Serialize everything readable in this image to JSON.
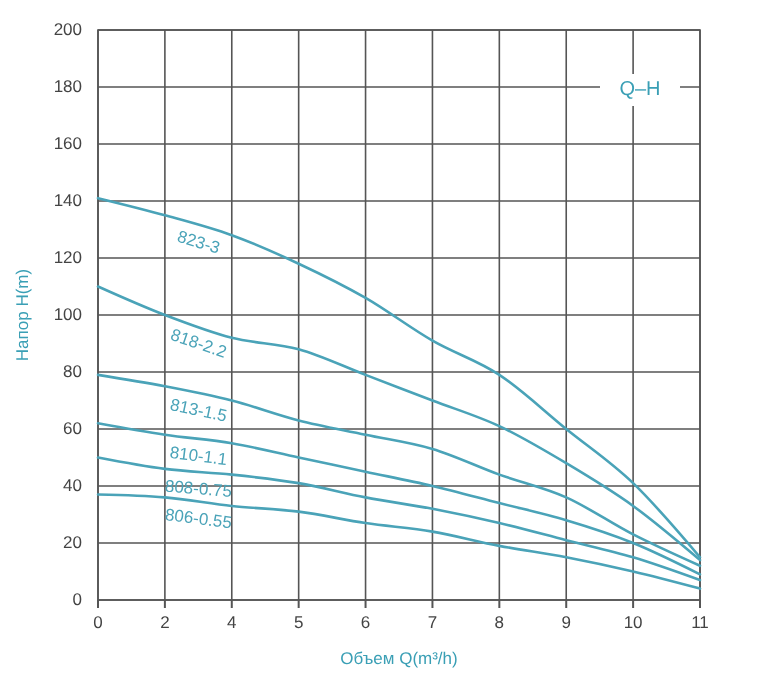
{
  "chart_data": {
    "type": "line",
    "title": "Q–H",
    "xlabel": "Объем Q(m³/h)",
    "ylabel": "Напор H(m)",
    "categories": [
      "0",
      "2",
      "4",
      "5",
      "6",
      "7",
      "8",
      "9",
      "10",
      "11"
    ],
    "ylim": [
      0,
      200
    ],
    "yticks": [
      0,
      20,
      40,
      60,
      80,
      100,
      120,
      140,
      160,
      180,
      200
    ],
    "grid": true,
    "marker": "none",
    "line_style": "solid",
    "series": [
      {
        "name": "823-3",
        "color": "#4aa3b8",
        "values": [
          141,
          135,
          128,
          118,
          106,
          91,
          79,
          60,
          41,
          15
        ]
      },
      {
        "name": "818-2.2",
        "color": "#4aa3b8",
        "values": [
          110,
          100,
          92,
          88,
          79,
          70,
          61,
          48,
          33,
          14
        ]
      },
      {
        "name": "813-1.5",
        "color": "#4aa3b8",
        "values": [
          79,
          75,
          70,
          63,
          58,
          53,
          44,
          36,
          23,
          12
        ]
      },
      {
        "name": "810-1.1",
        "color": "#4aa3b8",
        "values": [
          62,
          58,
          55,
          50,
          45,
          40,
          34,
          28,
          20,
          9
        ]
      },
      {
        "name": "808-0.75",
        "color": "#4aa3b8",
        "values": [
          50,
          46,
          44,
          41,
          36,
          32,
          27,
          21,
          15,
          7
        ]
      },
      {
        "name": "806-0.55",
        "color": "#4aa3b8",
        "values": [
          37,
          36,
          33,
          31,
          27,
          24,
          19,
          15,
          10,
          4
        ]
      }
    ]
  }
}
